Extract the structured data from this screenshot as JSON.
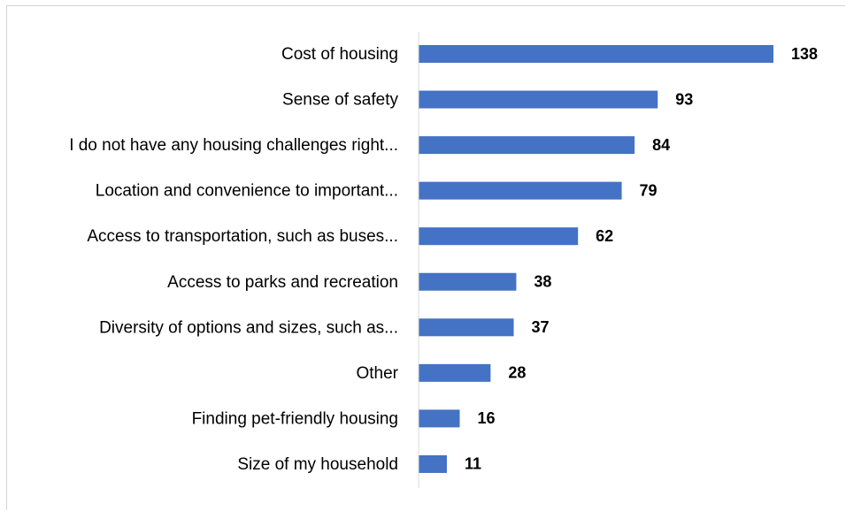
{
  "chart_data": {
    "type": "bar",
    "orientation": "horizontal",
    "title": "",
    "xlabel": "",
    "ylabel": "",
    "categories": [
      "Cost of housing",
      "Sense of safety",
      "I do not have any housing challenges right...",
      "Location and convenience to important...",
      "Access to transportation, such as buses...",
      "Access to parks and recreation",
      "Diversity of options and sizes, such as...",
      "Other",
      "Finding pet-friendly housing",
      "Size of my household"
    ],
    "values": [
      138,
      93,
      84,
      79,
      62,
      38,
      37,
      28,
      16,
      11
    ],
    "xlim": [
      0,
      138
    ],
    "bar_color": "#4472c4",
    "grid": false,
    "legend": false,
    "data_labels": true
  }
}
